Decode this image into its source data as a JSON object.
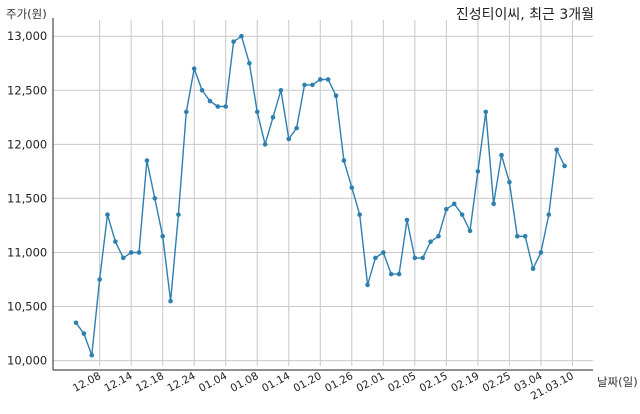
{
  "chart_data": {
    "type": "line",
    "title": "진성티이씨, 최근 3개월",
    "ylabel": "주가(원)",
    "xlabel": "날짜(일)",
    "ylim": [
      9950,
      13150
    ],
    "yticks": [
      10000,
      10500,
      11000,
      11500,
      12000,
      12500,
      13000
    ],
    "ytick_labels": [
      "10,000",
      "10,500",
      "11,000",
      "11,500",
      "12,000",
      "12,500",
      "13,000"
    ],
    "xtick_labels": [
      "12.08",
      "12.14",
      "12.18",
      "12.24",
      "01.04",
      "01.08",
      "01.14",
      "01.20",
      "01.26",
      "02.01",
      "02.05",
      "02.15",
      "02.19",
      "02.25",
      "03.04",
      "21.03.10"
    ],
    "xtick_index": [
      3,
      7,
      11,
      15,
      19,
      23,
      27,
      31,
      35,
      39,
      43,
      47,
      51,
      55,
      59,
      63
    ],
    "grid": true,
    "series": [
      {
        "color": "#2e7fb0",
        "values": [
          10350,
          10250,
          10050,
          10750,
          11350,
          11100,
          10950,
          11000,
          11000,
          11850,
          11500,
          11150,
          10550,
          11350,
          12300,
          12700,
          12500,
          12400,
          12350,
          12350,
          12950,
          13000,
          12750,
          12300,
          12000,
          12250,
          12500,
          12050,
          12150,
          12550,
          12550,
          12600,
          12600,
          12450,
          11850,
          11600,
          11350,
          10700,
          10950,
          11000,
          10800,
          10800,
          11300,
          10950,
          10950,
          11100,
          11150,
          11400,
          11450,
          11350,
          11200,
          11750,
          12300,
          11450,
          11900,
          11650,
          11150,
          11150,
          10850,
          11000,
          11350,
          11950,
          11800
        ]
      }
    ]
  }
}
